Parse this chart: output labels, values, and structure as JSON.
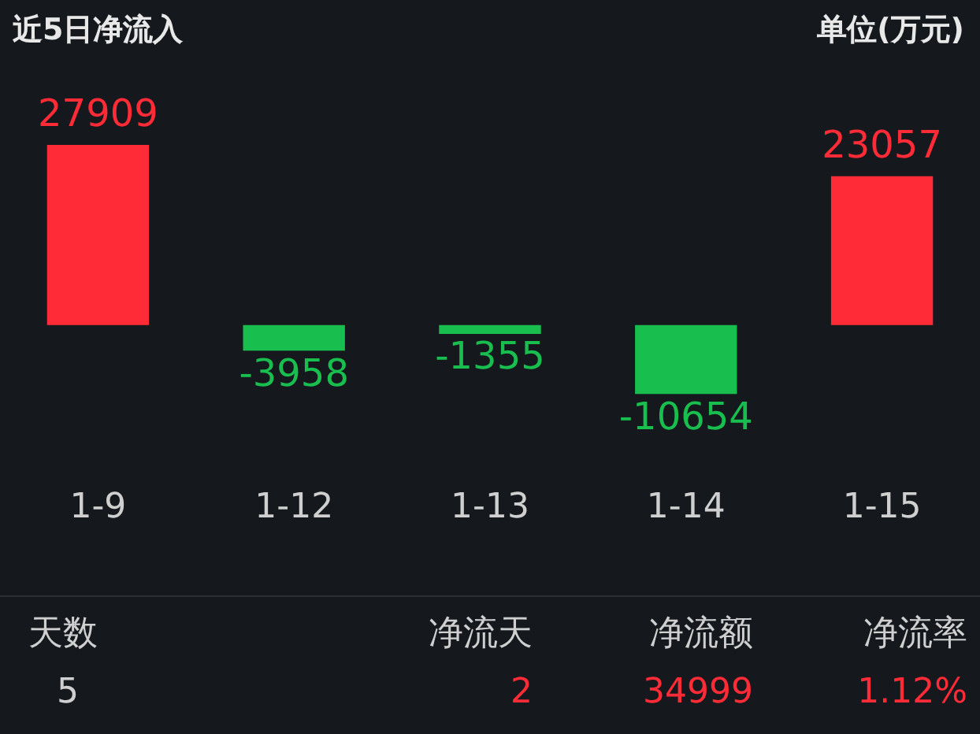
{
  "chart_data": {
    "type": "bar",
    "title": "近5日净流入",
    "subtitle": "单位(万元)",
    "categories": [
      "1-9",
      "1-12",
      "1-13",
      "1-14",
      "1-15"
    ],
    "values": [
      27909,
      -3958,
      -1355,
      -10654,
      23057
    ],
    "colors": [
      "#ff2b37",
      "#18bf4e",
      "#18bf4e",
      "#18bf4e",
      "#ff2b37"
    ],
    "data_labels": true,
    "annotations": [
      "天数",
      "5",
      "净流天",
      "2",
      "净流额",
      "34999",
      "净流率",
      "1.12%"
    ]
  }
}
